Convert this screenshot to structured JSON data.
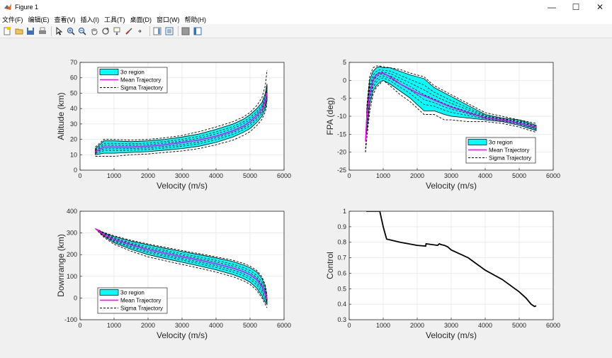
{
  "window": {
    "title": "Figure 1",
    "buttons": {
      "minimize": "—",
      "maximize": "☐",
      "close": "✕"
    }
  },
  "menu": [
    {
      "label": "文件(F)"
    },
    {
      "label": "编辑(E)"
    },
    {
      "label": "查看(V)"
    },
    {
      "label": "插入(I)"
    },
    {
      "label": "工具(T)"
    },
    {
      "label": "桌面(D)"
    },
    {
      "label": "窗口(W)"
    },
    {
      "label": "帮助(H)"
    }
  ],
  "toolbar": [
    {
      "icon": "new-figure-icon"
    },
    {
      "icon": "open-file-icon"
    },
    {
      "icon": "save-icon"
    },
    {
      "icon": "print-icon"
    },
    {
      "icon": "pointer-icon"
    },
    {
      "icon": "zoom-in-icon"
    },
    {
      "icon": "zoom-out-icon"
    },
    {
      "icon": "pan-icon"
    },
    {
      "icon": "rotate-3d-icon"
    },
    {
      "icon": "data-cursor-icon"
    },
    {
      "icon": "brush-icon"
    },
    {
      "icon": "link-plot-icon"
    },
    {
      "icon": "colorbar-icon"
    },
    {
      "icon": "legend-icon"
    },
    {
      "icon": "hide-plot-tools-icon"
    },
    {
      "icon": "show-plot-tools-icon"
    }
  ],
  "chart_data": [
    {
      "type": "line",
      "xlabel": "Velocity (m/s)",
      "ylabel": "Altitude (km)",
      "xlim": [
        0,
        6000
      ],
      "ylim": [
        0,
        70
      ],
      "xticks": [
        0,
        1000,
        2000,
        3000,
        4000,
        5000,
        6000
      ],
      "yticks": [
        0,
        10,
        20,
        30,
        40,
        50,
        60,
        70
      ],
      "grid": true,
      "legend_position": "top-left",
      "legend": [
        "3σ region",
        "Mean Trajectory",
        "Sigma Trajectory"
      ],
      "band": {
        "x": [
          450,
          700,
          1000,
          1500,
          2000,
          2500,
          3000,
          3500,
          4000,
          4500,
          4800,
          5000,
          5200,
          5350,
          5450,
          5500
        ],
        "upper": [
          14,
          19,
          19,
          18.5,
          19,
          20,
          21.5,
          23.5,
          26.5,
          30,
          33,
          36,
          40,
          44,
          50,
          56
        ],
        "lower": [
          10,
          11,
          11,
          11.5,
          12,
          13,
          14,
          15.5,
          18,
          21.5,
          24.5,
          27,
          31,
          35,
          40,
          45
        ]
      },
      "mean": {
        "x": [
          450,
          700,
          1000,
          1500,
          2000,
          2500,
          3000,
          3500,
          4000,
          4500,
          4800,
          5000,
          5200,
          5350,
          5450,
          5500
        ],
        "y": [
          12,
          15,
          15,
          15,
          15.5,
          16.5,
          18,
          19.5,
          22,
          25.5,
          28.5,
          31.5,
          35.5,
          39.5,
          45,
          50
        ]
      },
      "sigma": {
        "x": [
          450,
          700,
          1000,
          1500,
          2000,
          2500,
          3000,
          3500,
          4000,
          4500,
          4800,
          5000,
          5200,
          5350,
          5450,
          5500
        ],
        "upper": [
          15,
          20,
          20,
          19.5,
          20,
          21,
          22.5,
          25,
          28,
          31.5,
          34.5,
          37.5,
          42,
          47,
          55,
          65
        ],
        "lower": [
          9,
          9,
          9,
          10,
          10.5,
          11.5,
          12.5,
          14,
          16.5,
          19.5,
          22.5,
          25,
          29,
          33,
          38,
          43
        ]
      }
    },
    {
      "type": "line",
      "xlabel": "Velocity (m/s)",
      "ylabel": "FPA (deg)",
      "xlim": [
        0,
        6000
      ],
      "ylim": [
        -25,
        5
      ],
      "xticks": [
        0,
        1000,
        2000,
        3000,
        4000,
        5000,
        6000
      ],
      "yticks": [
        -25,
        -20,
        -15,
        -10,
        -5,
        0,
        5
      ],
      "grid": true,
      "legend_position": "bottom-right",
      "legend": [
        "3σ region",
        "Mean Trajectory",
        "Sigma Trajectory"
      ],
      "band": {
        "x": [
          480,
          520,
          600,
          700,
          800,
          900,
          1000,
          1200,
          1500,
          1800,
          2200,
          2500,
          2800,
          3000,
          3500,
          4000,
          4500,
          5000,
          5500
        ],
        "upper": [
          -17,
          -8,
          0,
          2.5,
          3.5,
          3.8,
          3.5,
          3.5,
          2.5,
          1.5,
          0.5,
          -2,
          -3.5,
          -4.5,
          -7,
          -9.5,
          -10.5,
          -11,
          -12.5
        ],
        "lower": [
          -17,
          -14,
          -7,
          -3,
          -1.5,
          -0.5,
          0,
          -1,
          -3,
          -5,
          -8.5,
          -8.5,
          -9.5,
          -10,
          -10.5,
          -11,
          -11.5,
          -12.5,
          -14
        ]
      },
      "mean": {
        "x": [
          480,
          520,
          600,
          700,
          800,
          900,
          1000,
          1200,
          1500,
          2000,
          2500,
          3000,
          3500,
          4000,
          4500,
          5000,
          5500
        ],
        "y": [
          -17,
          -10,
          -4,
          0,
          1.5,
          2,
          2,
          1,
          -1,
          -3.5,
          -5.5,
          -7.5,
          -9,
          -10.5,
          -11,
          -12,
          -13
        ]
      },
      "sigma": {
        "x": [
          480,
          520,
          600,
          700,
          800,
          900,
          1000,
          1200,
          1500,
          1800,
          2200,
          2500,
          2800,
          3000,
          3500,
          4000,
          4500,
          5000,
          5500
        ],
        "upper": [
          -20,
          -7,
          1,
          3.5,
          4,
          4,
          3.8,
          3.5,
          3,
          2,
          1,
          -1.5,
          -3,
          -4,
          -6.5,
          -9,
          -10,
          -11,
          -12
        ],
        "lower": [
          -20,
          -16,
          -9,
          -4,
          -2,
          -1,
          0,
          -1.5,
          -4,
          -6,
          -9.5,
          -9.5,
          -11,
          -11,
          -11.5,
          -11.5,
          -12,
          -13,
          -14.5
        ]
      }
    },
    {
      "type": "line",
      "xlabel": "Velocity (m/s)",
      "ylabel": "Downrange (km)",
      "xlim": [
        0,
        6000
      ],
      "ylim": [
        -100,
        400
      ],
      "xticks": [
        0,
        1000,
        2000,
        3000,
        4000,
        5000,
        6000
      ],
      "yticks": [
        -100,
        0,
        100,
        200,
        300,
        400
      ],
      "grid": true,
      "legend_position": "bottom-left",
      "legend": [
        "3σ region",
        "Mean Trajectory",
        "Sigma Trajectory"
      ],
      "band": {
        "x": [
          450,
          700,
          1000,
          1500,
          2000,
          2500,
          3000,
          3500,
          4000,
          4500,
          4800,
          5000,
          5200,
          5350,
          5450,
          5500
        ],
        "upper": [
          320,
          300,
          283,
          262,
          245,
          229,
          214,
          200,
          185,
          168,
          153,
          140,
          120,
          90,
          50,
          0
        ],
        "lower": [
          320,
          285,
          255,
          225,
          200,
          182,
          165,
          148,
          130,
          108,
          90,
          73,
          45,
          10,
          -20,
          -30
        ]
      },
      "mean": {
        "x": [
          450,
          700,
          1000,
          1500,
          2000,
          2500,
          3000,
          3500,
          4000,
          4500,
          4800,
          5000,
          5200,
          5350,
          5450,
          5500
        ],
        "y": [
          320,
          292,
          270,
          245,
          223,
          206,
          190,
          175,
          158,
          138,
          122,
          108,
          85,
          55,
          20,
          -5
        ]
      },
      "sigma": {
        "x": [
          450,
          700,
          1000,
          1500,
          2000,
          2500,
          3000,
          3500,
          4000,
          4500,
          4800,
          5000,
          5200,
          5350,
          5450,
          5500
        ],
        "upper": [
          320,
          302,
          287,
          266,
          249,
          234,
          219,
          205,
          190,
          174,
          160,
          147,
          127,
          98,
          60,
          10
        ],
        "lower": [
          320,
          280,
          248,
          216,
          190,
          172,
          155,
          138,
          120,
          98,
          80,
          63,
          35,
          0,
          -30,
          -45
        ]
      }
    },
    {
      "type": "line",
      "xlabel": "Velocity (m/s)",
      "ylabel": "Control",
      "xlim": [
        0,
        6000
      ],
      "ylim": [
        0.3,
        1
      ],
      "xticks": [
        0,
        1000,
        2000,
        3000,
        4000,
        5000,
        6000
      ],
      "yticks": [
        0.3,
        0.4,
        0.5,
        0.6,
        0.7,
        0.8,
        0.9,
        1
      ],
      "grid": true,
      "series": [
        {
          "x": [
            500,
            900,
            1000,
            1100,
            1500,
            2000,
            2250,
            2260,
            2600,
            2650,
            2700,
            2800,
            2900,
            3000,
            3500,
            4000,
            4500,
            5000,
            5200,
            5350,
            5450,
            5500
          ],
          "y": [
            1.0,
            1.0,
            0.9,
            0.82,
            0.8,
            0.78,
            0.775,
            0.79,
            0.78,
            0.79,
            0.785,
            0.78,
            0.77,
            0.75,
            0.7,
            0.62,
            0.56,
            0.48,
            0.44,
            0.4,
            0.385,
            0.39
          ]
        }
      ]
    }
  ]
}
